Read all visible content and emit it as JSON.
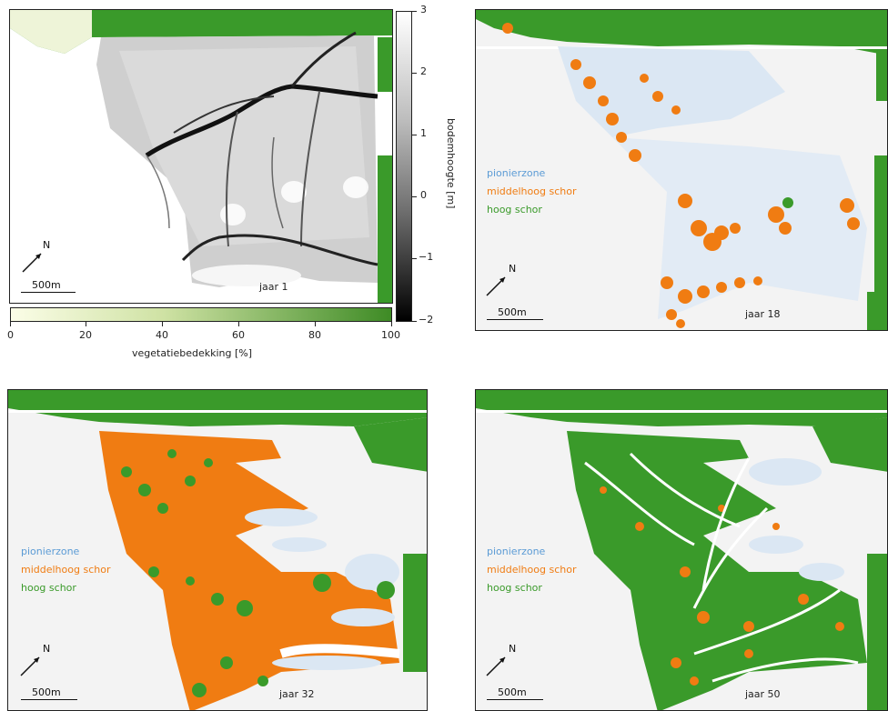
{
  "panels": [
    {
      "year_label": "jaar 1",
      "scale": "500m",
      "north": "N"
    },
    {
      "year_label": "jaar 18",
      "scale": "500m",
      "north": "N"
    },
    {
      "year_label": "jaar 32",
      "scale": "500m",
      "north": "N"
    },
    {
      "year_label": "jaar 50",
      "scale": "500m",
      "north": "N"
    }
  ],
  "legend": {
    "items": [
      {
        "label": "pionierzone",
        "color": "#5b9bd5"
      },
      {
        "label": "middelhoog schor",
        "color": "#f07c12"
      },
      {
        "label": "hoog schor",
        "color": "#3a9a2a"
      }
    ]
  },
  "colorbar_elevation": {
    "label": "bodemhoogte [m]",
    "ticks": [
      "3",
      "2",
      "1",
      "0",
      "−1",
      "−2"
    ]
  },
  "colorbar_vegetation": {
    "label": "vegetatiebedekking [%]",
    "ticks": [
      "0",
      "20",
      "40",
      "60",
      "80",
      "100"
    ]
  },
  "colors": {
    "vegetation_green": "#3a9a2a",
    "mid_marsh_orange": "#f07c12",
    "pioneer_blue": "#bcd4ea",
    "mudflat_grey": "#eeeeee"
  }
}
